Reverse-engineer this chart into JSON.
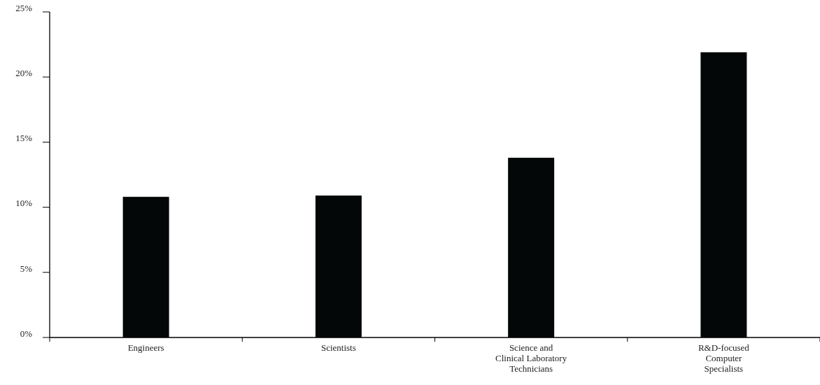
{
  "chart_data": {
    "type": "bar",
    "categories": [
      "Engineers",
      "Scientists",
      "Science and\nClinical Laboratory\nTechnicians",
      "R&D-focused\nComputer\nSpecialists"
    ],
    "values": [
      10.8,
      10.9,
      13.8,
      21.9
    ],
    "color": "#040708",
    "ylim": [
      0,
      25
    ],
    "yticks": [
      {
        "value": 0,
        "label": "0%"
      },
      {
        "value": 5,
        "label": "5%"
      },
      {
        "value": 10,
        "label": "10%"
      },
      {
        "value": 15,
        "label": "15%"
      },
      {
        "value": 20,
        "label": "20%"
      },
      {
        "value": 25,
        "label": "25%"
      }
    ],
    "grid": false
  }
}
